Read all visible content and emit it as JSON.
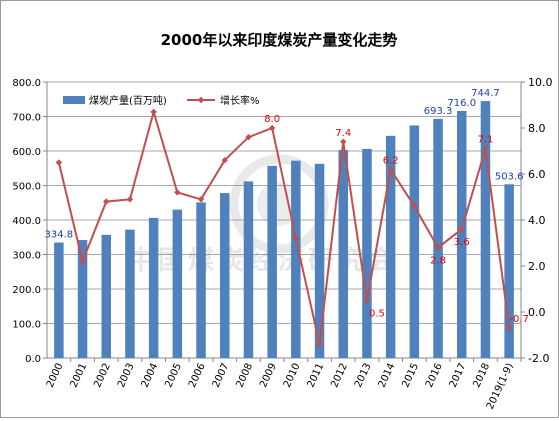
{
  "chart_data": {
    "type": "bar+line",
    "title": "2000年以来印度煤炭产量变化走势",
    "categories": [
      "2000",
      "2001",
      "2002",
      "2003",
      "2004",
      "2005",
      "2006",
      "2007",
      "2008",
      "2009",
      "2010",
      "2011",
      "2012",
      "2013",
      "2014",
      "2015",
      "2016",
      "2017",
      "2018",
      "2019(1-9)"
    ],
    "series": [
      {
        "name": "煤炭产量(百万吨)",
        "kind": "bar",
        "axis": "left",
        "color": "#4f81bd",
        "values": [
          334.8,
          342,
          357,
          372,
          406,
          430,
          451,
          478,
          512,
          557,
          572,
          563,
          603,
          606,
          644,
          674,
          693.3,
          716.0,
          744.7,
          503.6
        ]
      },
      {
        "name": "增长率%",
        "kind": "line",
        "axis": "right",
        "color": "#c0504d",
        "values": [
          6.5,
          2.2,
          4.8,
          4.9,
          8.7,
          5.2,
          4.9,
          6.6,
          7.6,
          8.0,
          3.2,
          -1.4,
          7.4,
          0.5,
          6.2,
          4.6,
          2.8,
          3.6,
          7.1,
          -0.7
        ]
      }
    ],
    "bar_labels": [
      {
        "index": 0,
        "text": "334.8"
      },
      {
        "index": 16,
        "text": "693.3"
      },
      {
        "index": 17,
        "text": "716.0"
      },
      {
        "index": 18,
        "text": "744.7"
      },
      {
        "index": 19,
        "text": "503.6"
      }
    ],
    "line_labels": [
      {
        "index": 9,
        "text": "8.0"
      },
      {
        "index": 12,
        "text": "7.4"
      },
      {
        "index": 13,
        "text": "0.5"
      },
      {
        "index": 14,
        "text": "6.2"
      },
      {
        "index": 16,
        "text": "2.8"
      },
      {
        "index": 17,
        "text": "3.6"
      },
      {
        "index": 18,
        "text": "7.1"
      },
      {
        "index": 19,
        "text": "-0.7"
      }
    ],
    "y_left": {
      "min": 0,
      "max": 800,
      "step": 100,
      "ticks": [
        "0.0",
        "100.0",
        "200.0",
        "300.0",
        "400.0",
        "500.0",
        "600.0",
        "700.0",
        "800.0"
      ]
    },
    "y_right": {
      "min": -2,
      "max": 10,
      "step": 2,
      "ticks": [
        "-2.0",
        "0.0",
        "2.0",
        "4.0",
        "6.0",
        "8.0",
        "10.0"
      ]
    },
    "grid": true,
    "legend_position": "top-left",
    "watermark": "中国煤炭经济研究会"
  }
}
